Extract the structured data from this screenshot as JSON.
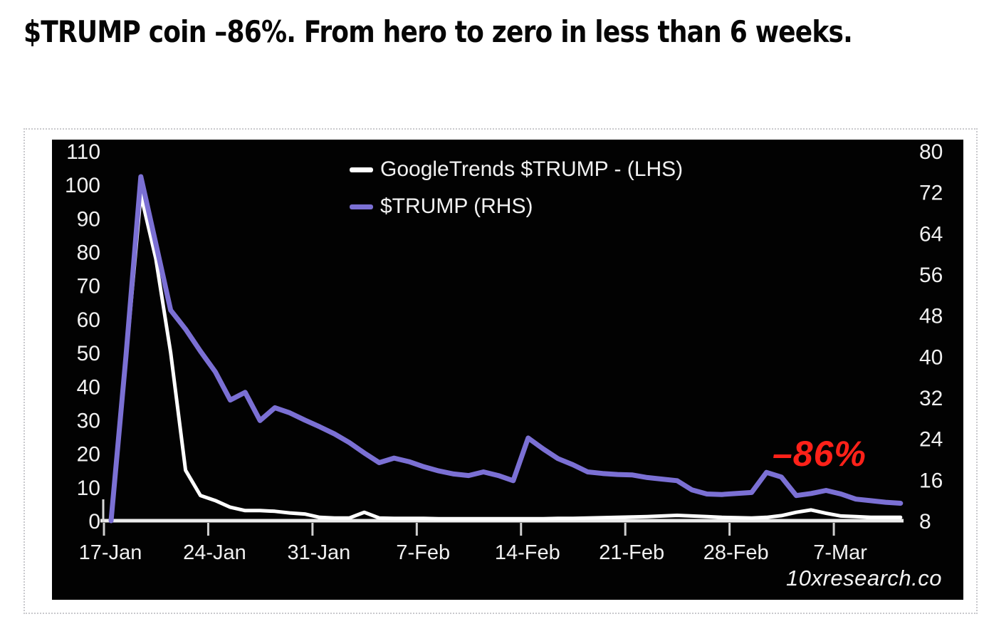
{
  "page": {
    "title": "$TRUMP coin –86%. From hero to zero in less than 6 weeks.",
    "background": "#ffffff"
  },
  "chart_data": {
    "type": "line",
    "title": "",
    "frequency": "daily",
    "x_start_date": "17-Jan",
    "x_end_date": "11-Mar",
    "x_tick_labels": [
      "17-Jan",
      "24-Jan",
      "31-Jan",
      "7-Feb",
      "14-Feb",
      "21-Feb",
      "28-Feb",
      "7-Mar"
    ],
    "x_tick_day_index": [
      0,
      7,
      14,
      21,
      28,
      35,
      42,
      49
    ],
    "lhs_axis": {
      "min": 0,
      "max": 110,
      "ticks": [
        110,
        100,
        90,
        80,
        70,
        60,
        50,
        40,
        30,
        20,
        10,
        0
      ]
    },
    "rhs_axis": {
      "min": 8,
      "max": 80,
      "ticks": [
        80,
        72,
        64,
        56,
        48,
        40,
        32,
        24,
        16,
        8
      ]
    },
    "series": [
      {
        "name": "GoogleTrends $TRUMP - (LHS)",
        "axis": "lhs",
        "color": "#ffffff",
        "values": [
          0,
          48,
          97,
          78,
          50,
          15,
          7.5,
          6,
          4,
          3,
          3,
          2.8,
          2.3,
          2,
          1,
          0.8,
          0.8,
          2.5,
          0.8,
          0.7,
          0.7,
          0.7,
          0.6,
          0.6,
          0.6,
          0.6,
          0.6,
          0.6,
          0.6,
          0.6,
          0.7,
          0.7,
          0.8,
          0.9,
          1,
          1.1,
          1.2,
          1.4,
          1.6,
          1.4,
          1.2,
          1,
          0.9,
          0.8,
          1,
          1.5,
          2.5,
          3.2,
          2.2,
          1.4,
          1.2,
          1,
          1,
          1
        ]
      },
      {
        "name": "$TRUMP (RHS)",
        "axis": "rhs",
        "color": "#7b70d4",
        "values": [
          8,
          40,
          75,
          62,
          49,
          45.3,
          41,
          37,
          31.5,
          33,
          27.5,
          30,
          29,
          27.6,
          26.3,
          24.9,
          23.2,
          21.2,
          19.3,
          20.2,
          19.5,
          18.5,
          17.7,
          17.1,
          16.8,
          17.5,
          16.8,
          15.8,
          24.1,
          22,
          20.1,
          18.9,
          17.5,
          17.2,
          17,
          16.9,
          16.4,
          16.1,
          15.8,
          14,
          13.2,
          13.1,
          13.3,
          13.5,
          17.4,
          16.5,
          12.9,
          13.3,
          13.9,
          13.2,
          12.2,
          11.9,
          11.6,
          11.4
        ]
      }
    ],
    "annotation": {
      "text": "–86%",
      "color": "#ff2119"
    },
    "watermark": "10xresearch.co",
    "legend_position": "top-center",
    "grid": false,
    "plot_bg": "#020202",
    "axis_color": "#ececec",
    "tick_color": "#cfcfcf",
    "label_color": "#f0f0f0"
  }
}
